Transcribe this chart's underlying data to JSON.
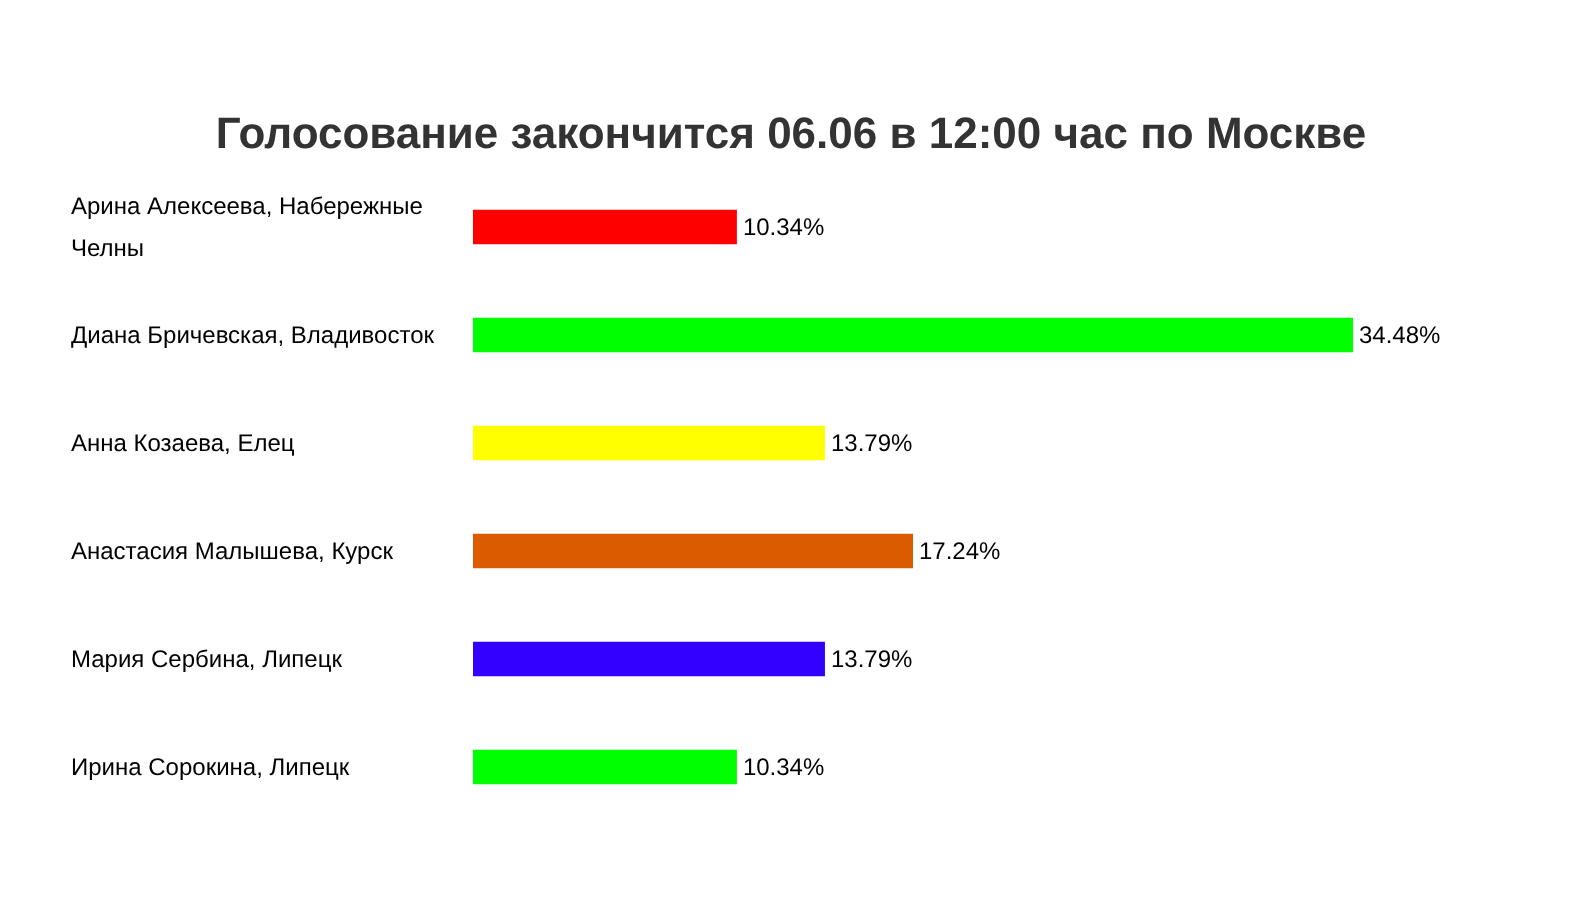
{
  "chart_data": {
    "type": "bar",
    "orientation": "horizontal",
    "title": "Голосование закончится 06.06 в 12:00 час по Москве",
    "categories": [
      "Арина Алексеева, Набережные Челны",
      "Диана Бричевская, Владивосток",
      "Анна Козаева, Елец",
      "Анастасия Малышева, Курск",
      "Мария Сербина, Липецк",
      "Ирина Сорокина, Липецк"
    ],
    "values": [
      10.34,
      34.48,
      13.79,
      17.24,
      13.79,
      10.34
    ],
    "colors": [
      "#ff0000",
      "#00ff00",
      "#ffff00",
      "#db5c00",
      "#3300ff",
      "#00ff00"
    ],
    "value_labels": [
      "10.34%",
      "34.48%",
      "13.79%",
      "17.24%",
      "13.79%",
      "10.34%"
    ],
    "grid": false
  }
}
